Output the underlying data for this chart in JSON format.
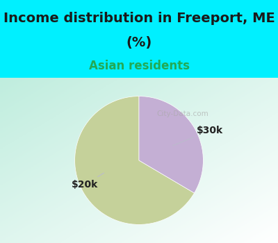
{
  "title_line1": "Income distribution in Freeport, ME",
  "title_line2": "(%)",
  "subtitle": "Asian residents",
  "slices": [
    0.665,
    0.335
  ],
  "labels": [
    "$20k",
    "$30k"
  ],
  "colors": [
    "#c5d19a",
    "#c4afd4"
  ],
  "background_cyan": "#00f0ff",
  "title_fontsize": 14,
  "subtitle_fontsize": 12,
  "subtitle_color": "#22aa55",
  "title_color": "#1a1a1a",
  "label_fontsize": 10,
  "startangle": 90,
  "watermark": "City-Data.com"
}
